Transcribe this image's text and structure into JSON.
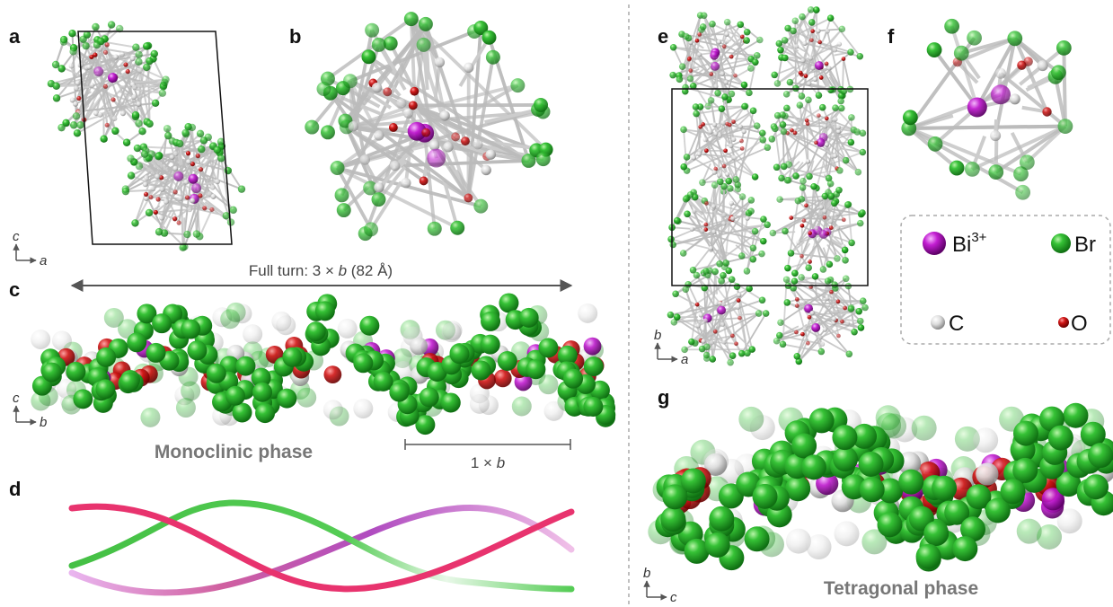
{
  "panels": [
    {
      "label": "a",
      "axis_vertical": "c",
      "axis_horizontal": "a"
    },
    {
      "label": "b"
    },
    {
      "label": "c",
      "axis_vertical": "c",
      "axis_horizontal": "b",
      "full_turn": [
        "Full turn: 3 × ",
        "b",
        " (82 Å)"
      ],
      "phase": "Monoclinic phase",
      "scale": [
        "1 × ",
        "b"
      ]
    },
    {
      "label": "d"
    },
    {
      "label": "e",
      "axis_vertical": "b",
      "axis_horizontal": "a"
    },
    {
      "label": "f",
      "legend": [
        {
          "symbol": "Bi",
          "charge": "3+"
        },
        {
          "symbol": "Br"
        },
        {
          "symbol": "C"
        },
        {
          "symbol": "O"
        }
      ]
    },
    {
      "label": "g",
      "axis_vertical": "b",
      "axis_horizontal": "c",
      "phase": "Tetragonal phase"
    }
  ]
}
